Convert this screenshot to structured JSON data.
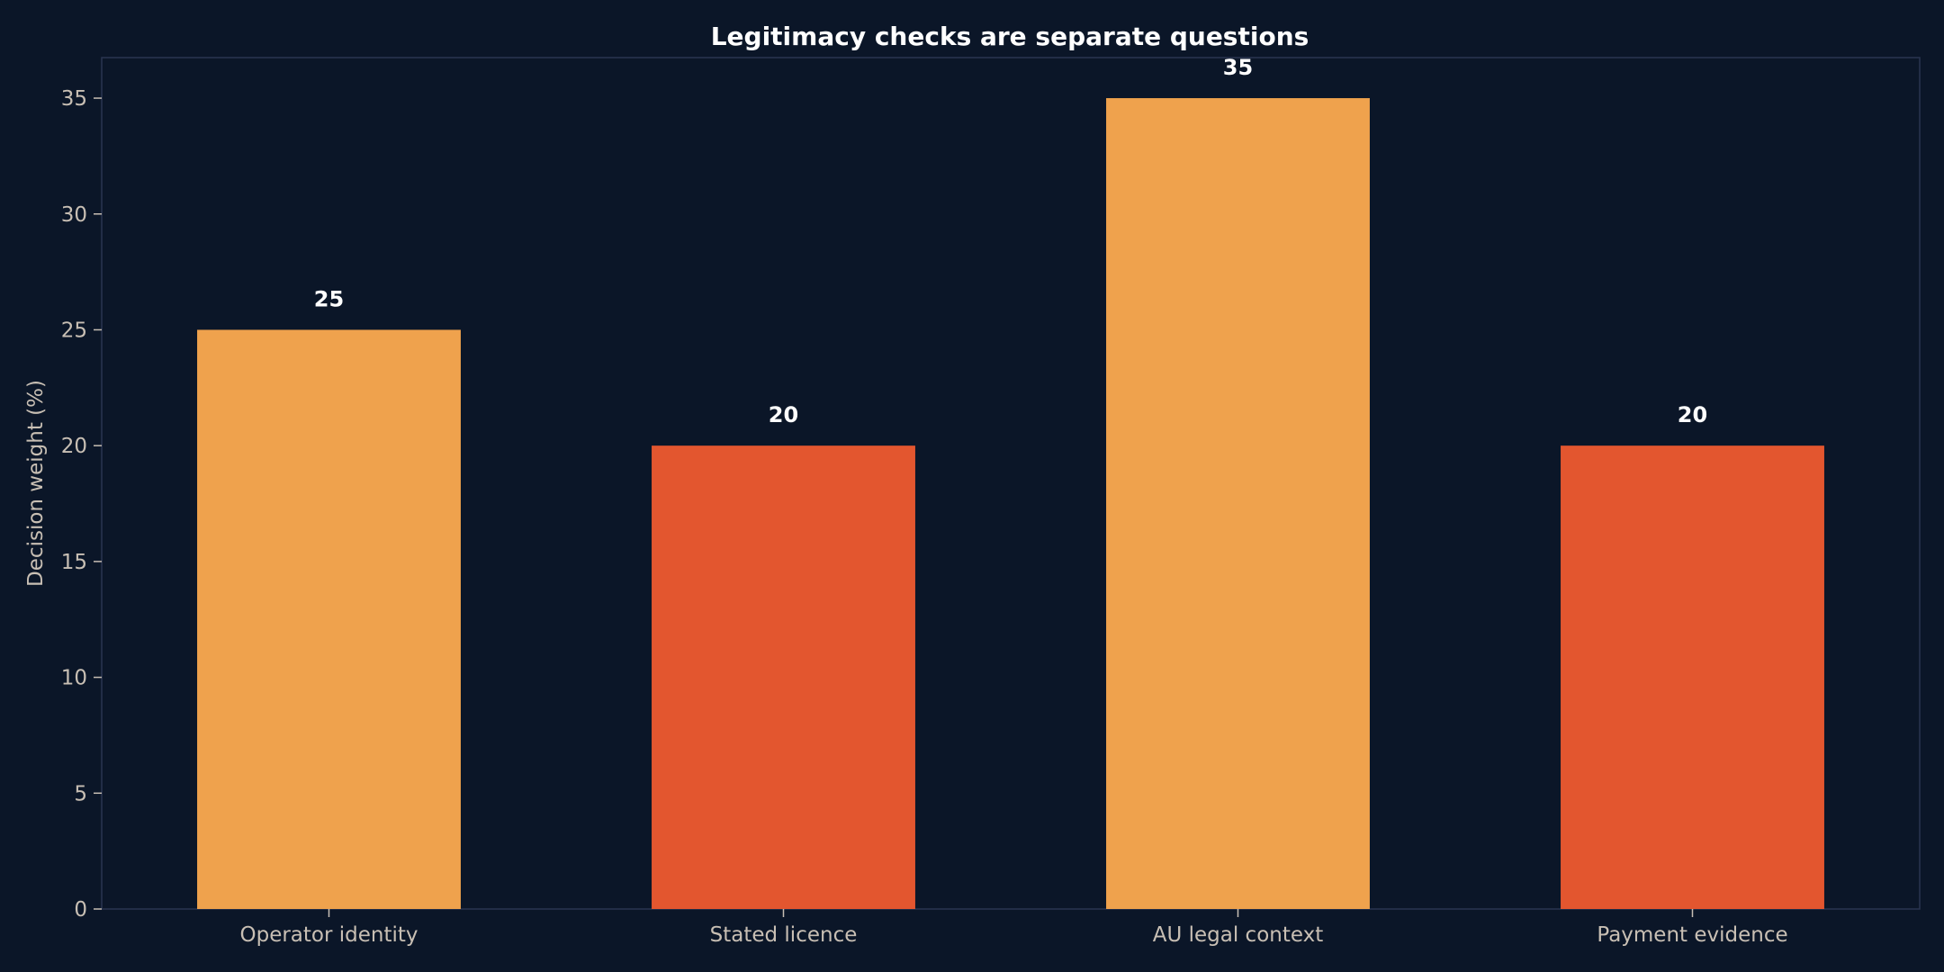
{
  "chart_data": {
    "type": "bar",
    "title": "Legitimacy checks are separate questions",
    "xlabel": "",
    "ylabel": "Decision weight (%)",
    "categories": [
      "Operator identity",
      "Stated licence",
      "AU legal context",
      "Payment evidence"
    ],
    "values": [
      25,
      20,
      35,
      20
    ],
    "data_labels": [
      "25",
      "20",
      "35",
      "20"
    ],
    "bar_colors": [
      "#efa24d",
      "#e3562f",
      "#efa24d",
      "#e3562f"
    ],
    "ylim": [
      0,
      36.75
    ],
    "yticks": [
      0,
      5,
      10,
      15,
      20,
      25,
      30,
      35
    ],
    "ytick_labels": [
      "0",
      "5",
      "10",
      "15",
      "20",
      "25",
      "30",
      "35"
    ],
    "grid": false,
    "legend": "none"
  },
  "colors": {
    "background": "#0b1628",
    "axis": "#2a3550",
    "tick_text": "#c8bfb4",
    "title_text": "#ffffff"
  }
}
